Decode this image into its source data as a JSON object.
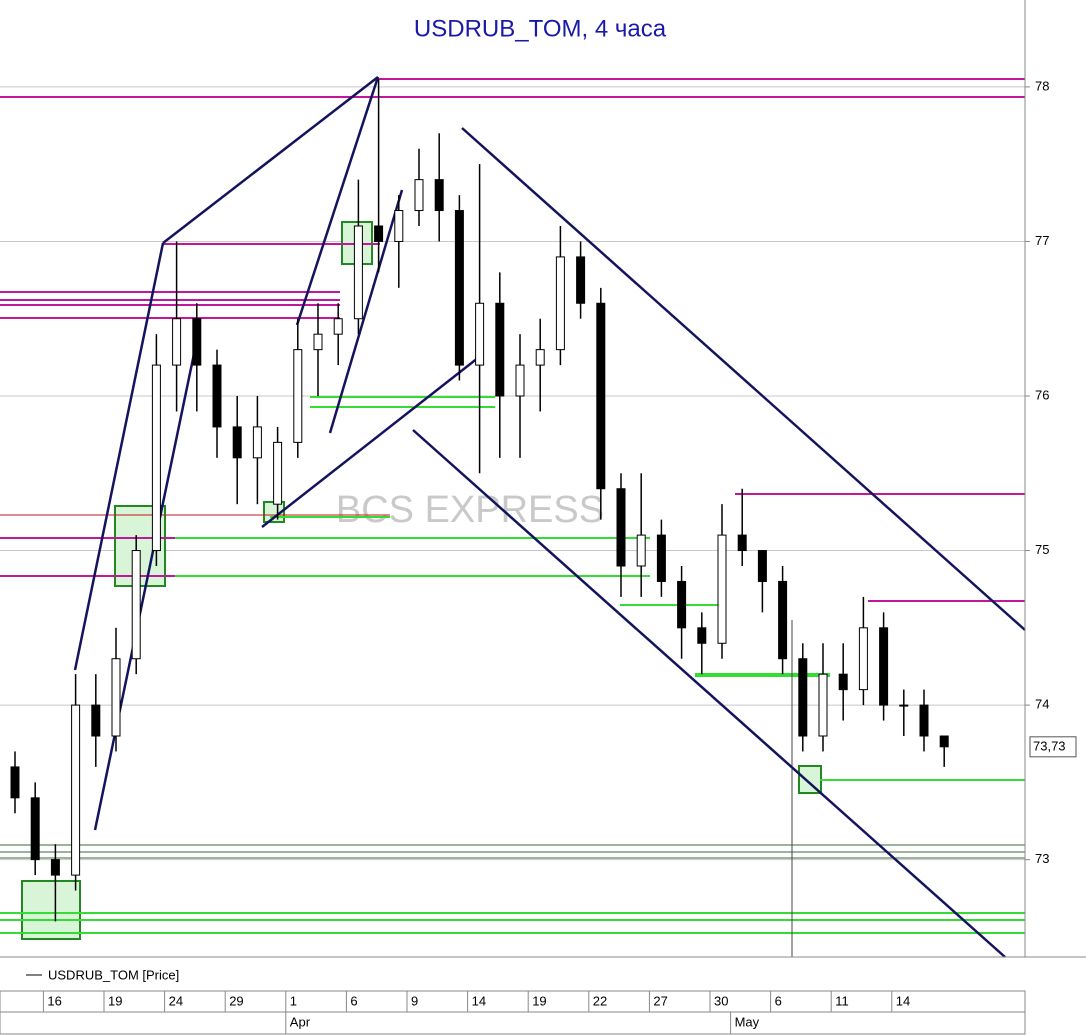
{
  "chart_data": {
    "type": "candlestick",
    "title": "USDRUB_TOM, 4 часа",
    "watermark": "BCS EXPRESS",
    "series_name": "USDRUB_TOM [Price]",
    "categories": [
      null,
      null,
      "16",
      null,
      null,
      "19",
      null,
      null,
      "24",
      null,
      null,
      "29",
      null,
      null,
      "1",
      null,
      null,
      "6",
      null,
      null,
      "9",
      null,
      null,
      "14",
      null,
      null,
      "19",
      null,
      null,
      "22",
      null,
      null,
      "27",
      null,
      null,
      "30",
      null,
      null,
      "6",
      null,
      null,
      "11",
      null,
      null,
      "14",
      null,
      null
    ],
    "months": [
      "Apr",
      "May"
    ],
    "open": [
      73.6,
      73.4,
      73.0,
      72.9,
      74.0,
      73.8,
      74.3,
      75.0,
      76.2,
      76.5,
      76.2,
      75.8,
      75.6,
      75.3,
      75.7,
      76.3,
      76.4,
      76.5,
      77.1,
      77.0,
      77.2,
      77.4,
      77.2,
      76.2,
      76.6,
      76.0,
      76.2,
      76.3,
      76.9,
      76.6,
      75.4,
      74.9,
      75.1,
      74.8,
      74.5,
      74.4,
      75.1,
      75.0,
      74.8,
      74.3,
      73.8,
      74.2,
      74.1,
      74.5,
      74.0,
      74.0,
      73.8
    ],
    "high": [
      73.7,
      73.5,
      73.1,
      74.2,
      74.2,
      74.5,
      75.1,
      76.4,
      77.0,
      76.6,
      76.3,
      76.0,
      76.0,
      75.8,
      76.5,
      76.6,
      76.6,
      77.4,
      78.05,
      77.3,
      77.6,
      77.7,
      77.3,
      77.5,
      76.8,
      76.4,
      76.5,
      77.1,
      77.0,
      76.7,
      75.5,
      75.5,
      75.2,
      74.9,
      74.6,
      75.3,
      75.4,
      75.0,
      74.9,
      74.4,
      74.4,
      74.4,
      74.7,
      74.6,
      74.1,
      74.1,
      73.8
    ],
    "low": [
      73.3,
      72.9,
      72.6,
      72.8,
      73.6,
      73.7,
      74.2,
      74.9,
      75.9,
      75.9,
      75.6,
      75.3,
      75.3,
      75.2,
      75.6,
      76.0,
      76.2,
      76.4,
      76.8,
      76.7,
      77.1,
      77.0,
      76.1,
      75.5,
      75.6,
      75.6,
      75.9,
      76.2,
      76.5,
      75.2,
      74.7,
      74.7,
      74.7,
      74.3,
      74.2,
      74.3,
      74.9,
      74.6,
      74.2,
      73.7,
      73.7,
      73.9,
      74.0,
      73.9,
      73.8,
      73.7,
      73.6
    ],
    "close": [
      73.4,
      73.0,
      72.9,
      74.0,
      73.8,
      74.3,
      75.0,
      76.2,
      76.5,
      76.2,
      75.8,
      75.6,
      75.8,
      75.7,
      76.3,
      76.4,
      76.5,
      77.1,
      77.0,
      77.2,
      77.4,
      77.2,
      76.2,
      76.6,
      76.0,
      76.2,
      76.3,
      76.9,
      76.6,
      75.4,
      74.9,
      75.1,
      74.8,
      74.5,
      74.4,
      75.1,
      75.0,
      74.8,
      74.3,
      73.8,
      74.2,
      74.1,
      74.5,
      74.0,
      74.0,
      73.8,
      73.73
    ],
    "last_price": {
      "value": 73.73,
      "label": "73,73"
    },
    "ylim": [
      72.37,
      78.53
    ],
    "yticks": [
      73,
      74,
      75,
      76,
      77,
      78
    ],
    "grid": true,
    "up_color": "#ffffff",
    "down_color": "#000000"
  }
}
